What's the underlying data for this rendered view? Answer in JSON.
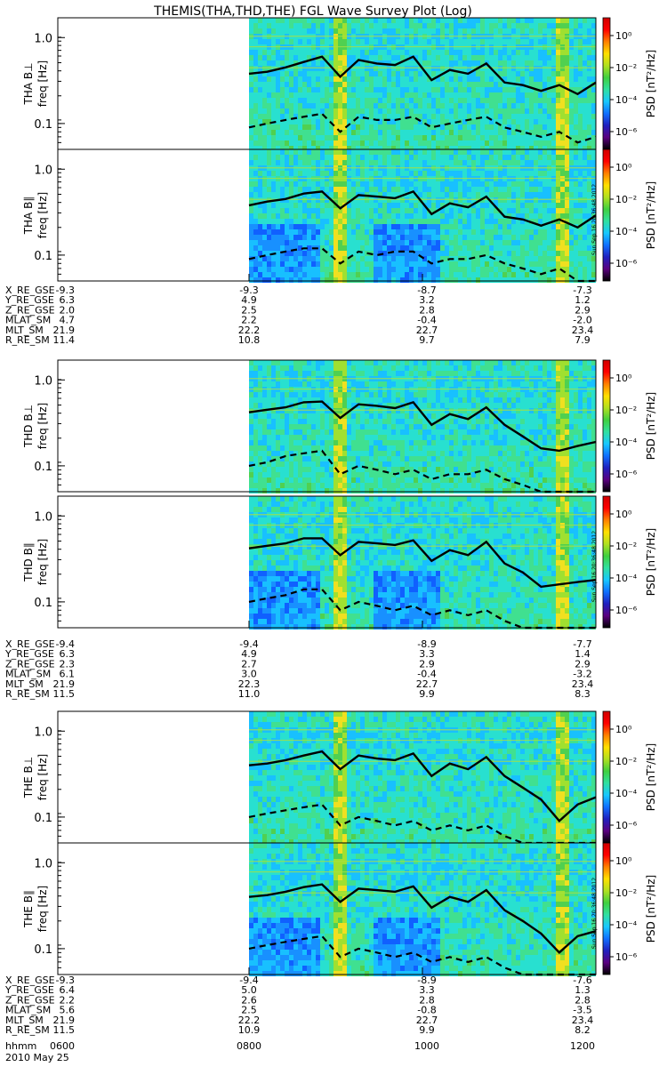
{
  "title": "THEMIS(THA,THD,THE) FGL Wave Survey Plot (Log)",
  "colorbar": {
    "label": "PSD [nT²/Hz]",
    "ticks": [
      "10⁰",
      "10⁻²",
      "10⁻⁴",
      "10⁻⁶"
    ],
    "colors": [
      "#000000",
      "#5a0080",
      "#2020c0",
      "#1070ff",
      "#18c8ff",
      "#30e0a0",
      "#40d040",
      "#b0e020",
      "#ffe000",
      "#ff8000",
      "#ff0000",
      "#d00000"
    ],
    "stamp": "Sun Sep 16 20:36:48 2012"
  },
  "chart_data": [
    {
      "type": "heatmap",
      "probe": "THA",
      "component": "B⊥",
      "ylabel_probe": "THA B⊥",
      "ylabel": "freq [Hz]",
      "yscale": "log",
      "ylim": [
        0.05,
        1.7
      ],
      "yticks": [
        "1.0",
        "0.1"
      ],
      "xlim": [
        "0600",
        "1200"
      ],
      "data_start": "0800",
      "solid_line_hz": [
        0.38,
        0.4,
        0.45,
        0.52,
        0.6,
        0.35,
        0.55,
        0.5,
        0.48,
        0.6,
        0.32,
        0.42,
        0.38,
        0.5,
        0.3,
        0.28,
        0.24,
        0.28,
        0.22,
        0.3
      ],
      "dashed_line_hz": [
        0.09,
        0.1,
        0.11,
        0.12,
        0.13,
        0.08,
        0.12,
        0.11,
        0.11,
        0.12,
        0.09,
        0.1,
        0.11,
        0.12,
        0.09,
        0.08,
        0.07,
        0.08,
        0.06,
        0.07
      ]
    },
    {
      "type": "heatmap",
      "probe": "THA",
      "component": "B∥",
      "ylabel_probe": "THA B∥",
      "ylabel": "freq [Hz]",
      "yscale": "log",
      "ylim": [
        0.05,
        1.7
      ],
      "yticks": [
        "1.0",
        "0.1"
      ],
      "xlim": [
        "0600",
        "1200"
      ],
      "data_start": "0800",
      "solid_line_hz": [
        0.38,
        0.42,
        0.45,
        0.52,
        0.55,
        0.35,
        0.5,
        0.48,
        0.46,
        0.55,
        0.3,
        0.4,
        0.36,
        0.48,
        0.28,
        0.26,
        0.22,
        0.26,
        0.21,
        0.29
      ],
      "dashed_line_hz": [
        0.09,
        0.1,
        0.11,
        0.12,
        0.12,
        0.08,
        0.11,
        0.1,
        0.11,
        0.11,
        0.08,
        0.09,
        0.09,
        0.1,
        0.08,
        0.07,
        0.06,
        0.07,
        0.05,
        0.05
      ]
    },
    {
      "type": "heatmap",
      "probe": "THD",
      "component": "B⊥",
      "ylabel_probe": "THD B⊥",
      "ylabel": "freq [Hz]",
      "yscale": "log",
      "ylim": [
        0.05,
        1.7
      ],
      "yticks": [
        "1.0",
        "0.1"
      ],
      "xlim": [
        "0600",
        "1200"
      ],
      "data_start": "0800",
      "solid_line_hz": [
        0.42,
        0.45,
        0.48,
        0.55,
        0.56,
        0.36,
        0.52,
        0.5,
        0.47,
        0.55,
        0.3,
        0.4,
        0.35,
        0.48,
        0.3,
        0.22,
        0.16,
        0.15,
        0.17,
        0.19
      ],
      "dashed_line_hz": [
        0.1,
        0.11,
        0.13,
        0.14,
        0.15,
        0.08,
        0.1,
        0.09,
        0.08,
        0.09,
        0.07,
        0.08,
        0.08,
        0.09,
        0.07,
        0.06,
        0.05,
        0.05,
        0.05,
        0.05
      ]
    },
    {
      "type": "heatmap",
      "probe": "THD",
      "component": "B∥",
      "ylabel_probe": "THD B∥",
      "ylabel": "freq [Hz]",
      "yscale": "log",
      "ylim": [
        0.05,
        1.7
      ],
      "yticks": [
        "1.0",
        "0.1"
      ],
      "xlim": [
        "0600",
        "1200"
      ],
      "data_start": "0800",
      "solid_line_hz": [
        0.42,
        0.45,
        0.48,
        0.55,
        0.55,
        0.35,
        0.5,
        0.48,
        0.46,
        0.52,
        0.3,
        0.4,
        0.35,
        0.5,
        0.28,
        0.22,
        0.15,
        0.16,
        0.17,
        0.18
      ],
      "dashed_line_hz": [
        0.1,
        0.11,
        0.12,
        0.14,
        0.14,
        0.08,
        0.1,
        0.09,
        0.08,
        0.09,
        0.07,
        0.08,
        0.07,
        0.08,
        0.06,
        0.05,
        0.05,
        0.05,
        0.05,
        0.05
      ]
    },
    {
      "type": "heatmap",
      "probe": "THE",
      "component": "B⊥",
      "ylabel_probe": "THE B⊥",
      "ylabel": "freq [Hz]",
      "yscale": "log",
      "ylim": [
        0.05,
        1.7
      ],
      "yticks": [
        "1.0",
        "0.1"
      ],
      "xlim": [
        "0600",
        "1200"
      ],
      "data_start": "0800",
      "solid_line_hz": [
        0.4,
        0.42,
        0.46,
        0.52,
        0.58,
        0.36,
        0.52,
        0.48,
        0.46,
        0.55,
        0.3,
        0.42,
        0.36,
        0.5,
        0.3,
        0.22,
        0.16,
        0.09,
        0.14,
        0.17
      ],
      "dashed_line_hz": [
        0.1,
        0.11,
        0.12,
        0.13,
        0.14,
        0.08,
        0.1,
        0.09,
        0.08,
        0.09,
        0.07,
        0.08,
        0.07,
        0.08,
        0.06,
        0.05,
        0.05,
        0.05,
        0.05,
        0.05
      ]
    },
    {
      "type": "heatmap",
      "probe": "THE",
      "component": "B∥",
      "ylabel_probe": "THE B∥",
      "ylabel": "freq [Hz]",
      "yscale": "log",
      "ylim": [
        0.05,
        1.7
      ],
      "yticks": [
        "1.0",
        "0.1"
      ],
      "xlim": [
        "0600",
        "1200"
      ],
      "data_start": "0800",
      "solid_line_hz": [
        0.4,
        0.42,
        0.46,
        0.52,
        0.56,
        0.35,
        0.5,
        0.48,
        0.46,
        0.53,
        0.3,
        0.4,
        0.35,
        0.48,
        0.28,
        0.21,
        0.15,
        0.09,
        0.14,
        0.16
      ],
      "dashed_line_hz": [
        0.1,
        0.11,
        0.12,
        0.13,
        0.14,
        0.08,
        0.1,
        0.09,
        0.08,
        0.09,
        0.07,
        0.08,
        0.07,
        0.08,
        0.06,
        0.05,
        0.05,
        0.05,
        0.05,
        0.05
      ]
    }
  ],
  "ephemeris": [
    {
      "probe": "THA",
      "rows": [
        {
          "label": "X_RE_GSE",
          "values": [
            "-9.3",
            "-9.3",
            "-8.7",
            "-7.3"
          ]
        },
        {
          "label": "Y_RE_GSE",
          "values": [
            "6.3",
            "4.9",
            "3.2",
            "1.2"
          ]
        },
        {
          "label": "Z_RE_GSE",
          "values": [
            "2.0",
            "2.5",
            "2.8",
            "2.9"
          ]
        },
        {
          "label": "MLAT_SM",
          "values": [
            "4.7",
            "2.2",
            "-0.4",
            "-2.0"
          ]
        },
        {
          "label": "MLT_SM",
          "values": [
            "21.9",
            "22.2",
            "22.7",
            "23.4"
          ]
        },
        {
          "label": "R_RE_SM",
          "values": [
            "11.4",
            "10.8",
            "9.7",
            "7.9"
          ]
        }
      ]
    },
    {
      "probe": "THD",
      "rows": [
        {
          "label": "X_RE_GSE",
          "values": [
            "-9.4",
            "-9.4",
            "-8.9",
            "-7.7"
          ]
        },
        {
          "label": "Y_RE_GSE",
          "values": [
            "6.3",
            "4.9",
            "3.3",
            "1.4"
          ]
        },
        {
          "label": "Z_RE_GSE",
          "values": [
            "2.3",
            "2.7",
            "2.9",
            "2.9"
          ]
        },
        {
          "label": "MLAT_SM",
          "values": [
            "6.1",
            "3.0",
            "-0.4",
            "-3.2"
          ]
        },
        {
          "label": "MLT_SM",
          "values": [
            "21.9",
            "22.3",
            "22.7",
            "23.4"
          ]
        },
        {
          "label": "R_RE_SM",
          "values": [
            "11.5",
            "11.0",
            "9.9",
            "8.3"
          ]
        }
      ]
    },
    {
      "probe": "THE",
      "rows": [
        {
          "label": "X_RE_GSE",
          "values": [
            "-9.3",
            "-9.4",
            "-8.9",
            "-7.6"
          ]
        },
        {
          "label": "Y_RE_GSE",
          "values": [
            "6.4",
            "5.0",
            "3.3",
            "1.3"
          ]
        },
        {
          "label": "Z_RE_GSE",
          "values": [
            "2.2",
            "2.6",
            "2.8",
            "2.8"
          ]
        },
        {
          "label": "MLAT_SM",
          "values": [
            "5.6",
            "2.5",
            "-0.8",
            "-3.5"
          ]
        },
        {
          "label": "MLT_SM",
          "values": [
            "21.9",
            "22.2",
            "22.7",
            "23.4"
          ]
        },
        {
          "label": "R_RE_SM",
          "values": [
            "11.5",
            "10.9",
            "9.9",
            "8.2"
          ]
        }
      ]
    }
  ],
  "time_axis": {
    "label": "hhmm",
    "ticks": [
      "0600",
      "0800",
      "1000",
      "1200"
    ],
    "date": "2010 May 25"
  }
}
